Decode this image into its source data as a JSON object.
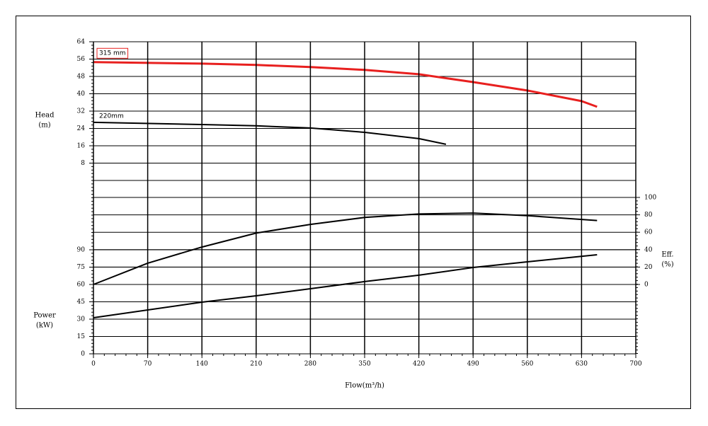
{
  "chart_data": [
    {
      "type": "line",
      "xlim": [
        0,
        700
      ],
      "ylim": [
        0,
        64
      ],
      "yticks": [
        8,
        16,
        24,
        32,
        40,
        48,
        56,
        64
      ],
      "y_label": [
        "Head",
        "(m)"
      ],
      "grid": true,
      "tick_side": "left",
      "series": [
        {
          "name": "315 mm",
          "color": "#e8201f",
          "boxed": true,
          "x": [
            0,
            140,
            210,
            280,
            350,
            420,
            490,
            560,
            630,
            650
          ],
          "values": [
            54.6,
            53.9,
            53.3,
            52.3,
            51,
            49,
            45.4,
            41.5,
            36.6,
            34
          ]
        },
        {
          "name": "220mm",
          "color": "#000000",
          "boxed": false,
          "x": [
            0,
            140,
            210,
            280,
            350,
            420,
            455
          ],
          "values": [
            26.8,
            25.8,
            25.2,
            24.2,
            22.2,
            19.3,
            16.7
          ]
        }
      ]
    },
    {
      "type": "line",
      "xlim": [
        0,
        700
      ],
      "ylim": [
        0,
        100
      ],
      "yticks": [
        0,
        20,
        40,
        60,
        80,
        100
      ],
      "y_label": [
        "Eff.",
        "(%)"
      ],
      "grid": true,
      "tick_side": "right",
      "series": [
        {
          "color": "#000000",
          "x": [
            0,
            70,
            140,
            210,
            280,
            350,
            420,
            490,
            560,
            650
          ],
          "values": [
            0,
            24.5,
            43,
            59,
            69,
            77,
            81,
            82,
            79,
            73.5
          ]
        }
      ]
    },
    {
      "type": "line",
      "xlim": [
        0,
        700
      ],
      "ylim": [
        0,
        90
      ],
      "yticks": [
        0,
        15,
        30,
        45,
        60,
        75,
        90
      ],
      "xticks": [
        0,
        70,
        140,
        210,
        280,
        350,
        420,
        490,
        560,
        630,
        700
      ],
      "x_label": "Flow(m³/h)",
      "y_label": [
        "Power",
        "(kW)"
      ],
      "grid": true,
      "tick_side": "left",
      "series": [
        {
          "color": "#000000",
          "x": [
            0,
            140,
            210,
            280,
            350,
            420,
            490,
            560,
            650
          ],
          "values": [
            31.2,
            44.7,
            50.2,
            56.3,
            62.5,
            68,
            74.7,
            79.6,
            85.7
          ]
        }
      ]
    }
  ]
}
